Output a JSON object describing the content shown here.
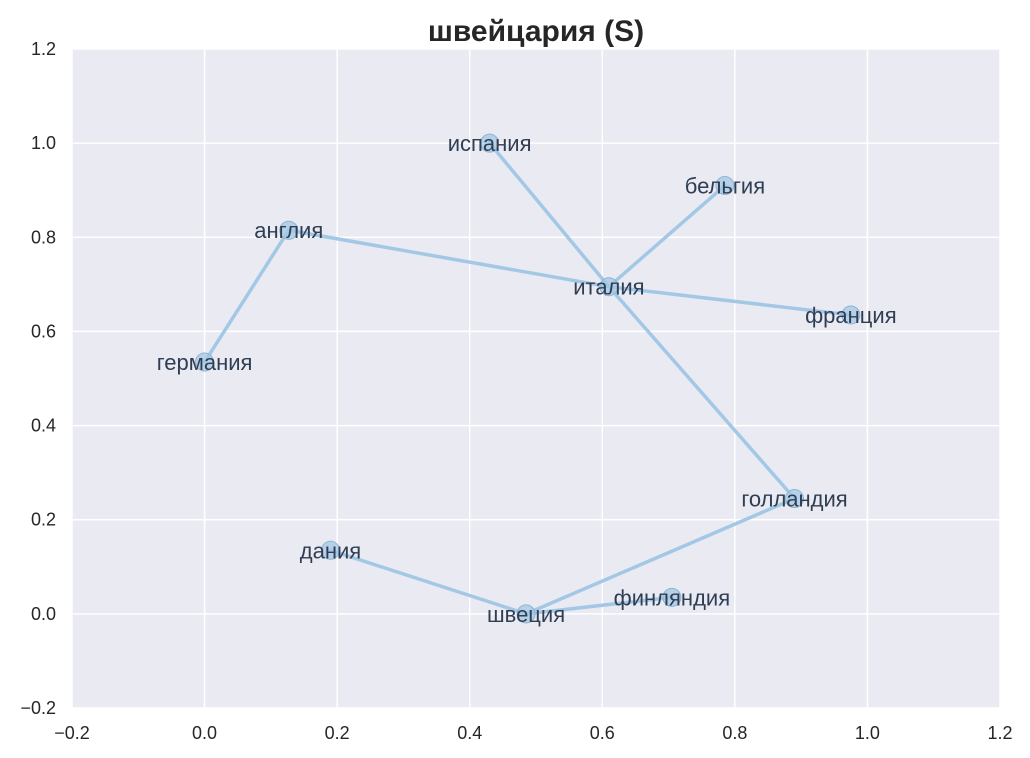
{
  "chart_data": {
    "type": "scatter",
    "title": "швейцария (S)",
    "xlabel": "",
    "ylabel": "",
    "xlim": [
      -0.2,
      1.2
    ],
    "ylim": [
      -0.2,
      1.2
    ],
    "xticks": [
      "−0.2",
      "0.0",
      "0.2",
      "0.4",
      "0.6",
      "0.8",
      "1.0",
      "1.2"
    ],
    "yticks": [
      "−0.2",
      "0.0",
      "0.2",
      "0.4",
      "0.6",
      "0.8",
      "1.0",
      "1.2"
    ],
    "grid": true,
    "colors": {
      "background": "#eaeaf2",
      "grid": "#ffffff",
      "edge": "#a3c8e6",
      "node": "#a3c8e6",
      "label": "#2f3e52"
    },
    "nodes": [
      {
        "name": "испания",
        "x": 0.43,
        "y": 1.0
      },
      {
        "name": "бельгия",
        "x": 0.785,
        "y": 0.91
      },
      {
        "name": "англия",
        "x": 0.127,
        "y": 0.815
      },
      {
        "name": "италия",
        "x": 0.61,
        "y": 0.695
      },
      {
        "name": "франция",
        "x": 0.975,
        "y": 0.635
      },
      {
        "name": "германия",
        "x": 0.0,
        "y": 0.535
      },
      {
        "name": "голландия",
        "x": 0.89,
        "y": 0.245
      },
      {
        "name": "дания",
        "x": 0.19,
        "y": 0.135
      },
      {
        "name": "финляндия",
        "x": 0.705,
        "y": 0.035
      },
      {
        "name": "швеция",
        "x": 0.485,
        "y": 0.0
      }
    ],
    "edges": [
      [
        "германия",
        "англия"
      ],
      [
        "англия",
        "италия"
      ],
      [
        "италия",
        "франция"
      ],
      [
        "италия",
        "испания"
      ],
      [
        "италия",
        "бельгия"
      ],
      [
        "италия",
        "голландия"
      ],
      [
        "голландия",
        "швеция"
      ],
      [
        "швеция",
        "финляндия"
      ],
      [
        "швеция",
        "дания"
      ]
    ]
  }
}
